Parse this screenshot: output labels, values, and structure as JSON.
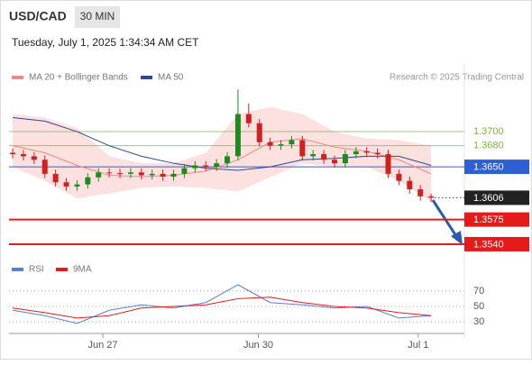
{
  "chart_data": {
    "type": "candlestick",
    "title": "USD/CAD",
    "timeframe": "30 MIN",
    "timestamp": "Tuesday, July 1, 2025 1:34:34 AM CET",
    "attribution": "Research © 2025 Trading Central",
    "up_color": "#1f8a1f",
    "down_color": "#cc2222",
    "open": [
      1.367,
      1.3668,
      1.3665,
      1.366,
      1.364,
      1.3628,
      1.3622,
      1.3625,
      1.3635,
      1.3642,
      1.3641,
      1.364,
      1.3642,
      1.3638,
      1.364,
      1.3636,
      1.364,
      1.3648,
      1.3652,
      1.365,
      1.3655,
      1.3665,
      1.3725,
      1.3712,
      1.3685,
      1.368,
      1.3682,
      1.3688,
      1.3665,
      1.3668,
      1.366,
      1.3655,
      1.3668,
      1.3672,
      1.367,
      1.3668,
      1.364,
      1.363,
      1.3618,
      1.3608
    ],
    "high": [
      1.3676,
      1.3674,
      1.3671,
      1.3666,
      1.3646,
      1.3634,
      1.3631,
      1.3641,
      1.3648,
      1.3648,
      1.3647,
      1.3648,
      1.3648,
      1.3646,
      1.3646,
      1.3646,
      1.3654,
      1.3658,
      1.3658,
      1.3661,
      1.3671,
      1.376,
      1.374,
      1.3718,
      1.3691,
      1.3688,
      1.3694,
      1.3694,
      1.3674,
      1.3674,
      1.3666,
      1.3674,
      1.3678,
      1.3678,
      1.3676,
      1.3674,
      1.3646,
      1.3636,
      1.3624,
      1.3612
    ],
    "low": [
      1.3662,
      1.3659,
      1.3654,
      1.3634,
      1.3622,
      1.3616,
      1.3616,
      1.3619,
      1.3629,
      1.3635,
      1.3634,
      1.3634,
      1.3632,
      1.3632,
      1.363,
      1.363,
      1.3634,
      1.3642,
      1.3644,
      1.3644,
      1.3649,
      1.3659,
      1.3706,
      1.3679,
      1.3674,
      1.3674,
      1.3676,
      1.3659,
      1.3659,
      1.3654,
      1.3649,
      1.3649,
      1.3662,
      1.3664,
      1.3662,
      1.3634,
      1.3624,
      1.3612,
      1.3602,
      1.36
    ],
    "close": [
      1.3668,
      1.3665,
      1.366,
      1.364,
      1.3628,
      1.3622,
      1.3625,
      1.3635,
      1.3642,
      1.3641,
      1.364,
      1.3642,
      1.3638,
      1.364,
      1.3636,
      1.364,
      1.3648,
      1.3652,
      1.365,
      1.3655,
      1.3665,
      1.3725,
      1.3712,
      1.3685,
      1.368,
      1.3682,
      1.3688,
      1.3665,
      1.3668,
      1.366,
      1.3655,
      1.3668,
      1.3672,
      1.367,
      1.3668,
      1.364,
      1.363,
      1.3618,
      1.3608,
      1.3606
    ],
    "xlim": [
      -0.34,
      42.1
    ],
    "ylim": [
      1.3522,
      1.3759
    ],
    "xticks": [
      {
        "value": 8.4,
        "label": "Jun 27"
      },
      {
        "value": 22.9,
        "label": "Jun 30"
      },
      {
        "value": 37.8,
        "label": "Jul 1"
      }
    ],
    "overlays": [
      {
        "name": "MA 20 + Bollinger Bands",
        "color": "#f08a80",
        "band_color": "#fdd8d8",
        "x": [
          0,
          3,
          6,
          9,
          12,
          15,
          18,
          21,
          24,
          27,
          30,
          33,
          36,
          39
        ],
        "values": [
          1.368,
          1.367,
          1.3652,
          1.3638,
          1.3636,
          1.3638,
          1.3644,
          1.366,
          1.3685,
          1.369,
          1.3678,
          1.3672,
          1.366,
          1.364
        ],
        "upper": [
          1.3725,
          1.372,
          1.3705,
          1.3665,
          1.3655,
          1.3655,
          1.367,
          1.3725,
          1.3735,
          1.3725,
          1.37,
          1.369,
          1.3688,
          1.368
        ],
        "lower": [
          1.365,
          1.363,
          1.3605,
          1.3612,
          1.362,
          1.3622,
          1.362,
          1.3615,
          1.3635,
          1.3655,
          1.365,
          1.365,
          1.363,
          1.36
        ]
      },
      {
        "name": "MA 50",
        "color": "#2e4a8a",
        "x": [
          0,
          3,
          6,
          9,
          12,
          15,
          18,
          21,
          24,
          27,
          30,
          33,
          36,
          39
        ],
        "values": [
          1.372,
          1.3715,
          1.37,
          1.368,
          1.3665,
          1.3655,
          1.3648,
          1.3645,
          1.365,
          1.366,
          1.3662,
          1.3665,
          1.3665,
          1.3652
        ]
      }
    ],
    "levels": [
      {
        "value": 1.37,
        "label": "1.3700",
        "color": "#7cb342",
        "kind": "text"
      },
      {
        "value": 1.368,
        "label": "1.3680",
        "color": "#7cb342",
        "kind": "text"
      },
      {
        "value": 1.365,
        "label": "1.3650",
        "color": "#2f5fd0",
        "kind": "box"
      },
      {
        "value": 1.3606,
        "label": "1.3606",
        "color": "#222222",
        "kind": "current"
      },
      {
        "value": 1.3575,
        "label": "1.3575",
        "color": "#e31b1b",
        "kind": "box"
      },
      {
        "value": 1.354,
        "label": "1.3540",
        "color": "#e31b1b",
        "kind": "box"
      }
    ],
    "rsi": {
      "x": [
        0,
        3,
        6,
        9,
        12,
        15,
        18,
        21,
        24,
        27,
        30,
        33,
        36,
        39
      ],
      "ylim": [
        15,
        85
      ],
      "yticks": [
        30,
        50,
        70
      ],
      "series": [
        {
          "name": "RSI",
          "color": "#5b7fd6",
          "values": [
            45,
            38,
            28,
            45,
            52,
            48,
            55,
            78,
            55,
            52,
            48,
            50,
            35,
            38
          ]
        },
        {
          "name": "9MA",
          "color": "#e31b1b",
          "values": [
            48,
            42,
            35,
            38,
            48,
            50,
            52,
            60,
            62,
            55,
            50,
            48,
            42,
            38
          ]
        }
      ]
    }
  }
}
